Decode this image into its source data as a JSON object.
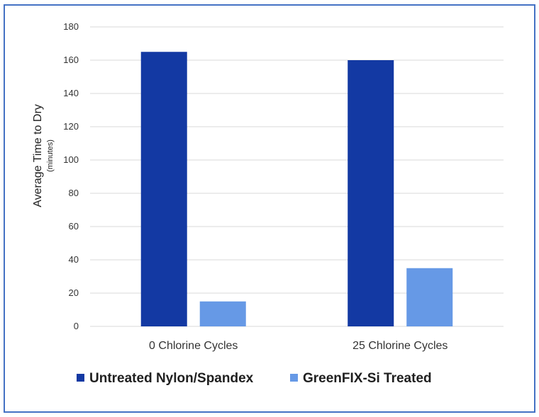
{
  "chart_data": {
    "type": "bar",
    "categories": [
      "0 Chlorine Cycles",
      "25 Chlorine Cycles"
    ],
    "series": [
      {
        "name": "Untreated Nylon/Spandex",
        "values": [
          165,
          160
        ],
        "color": "#1339a3"
      },
      {
        "name": "GreenFIX-Si Treated",
        "values": [
          15,
          35
        ],
        "color": "#6699e6"
      }
    ],
    "ylabel": "Average Time to Dry",
    "ylabel_unit": "(minutes)",
    "xlabel": "",
    "ylim": [
      0,
      180
    ],
    "yticks": [
      "0",
      "20",
      "40",
      "60",
      "80",
      "100",
      "120",
      "140",
      "160",
      "180"
    ],
    "grid": true,
    "legend_position": "bottom",
    "colors": {
      "frame_border": "#4472c4",
      "gridline": "#d9d9d9"
    }
  }
}
